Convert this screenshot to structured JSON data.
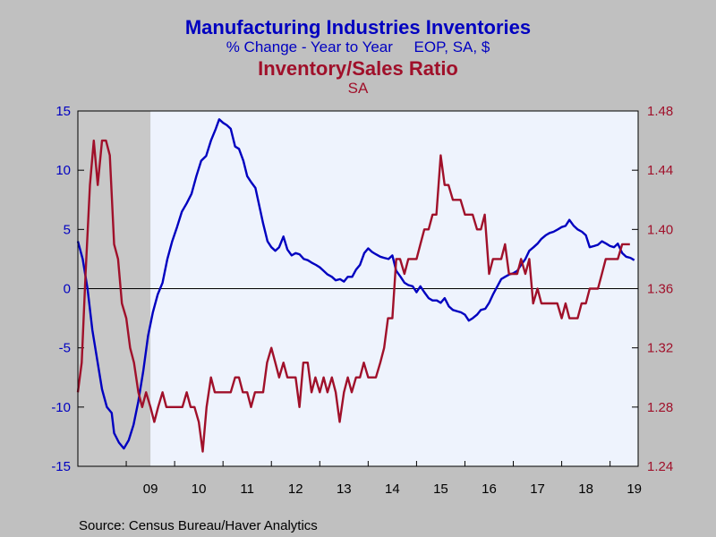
{
  "chart_data": {
    "type": "line",
    "title": "Manufacturing Industries Inventories",
    "subtitle": "% Change - Year to Year     EOP, SA, $",
    "title2": "Inventory/Sales Ratio",
    "subtitle2": "SA",
    "source": "Source:  Census Bureau/Haver Analytics",
    "x_tick_labels": [
      "09",
      "10",
      "11",
      "12",
      "13",
      "14",
      "15",
      "16",
      "17",
      "18",
      "19"
    ],
    "x_tick_years": [
      2009,
      2010,
      2011,
      2012,
      2013,
      2014,
      2015,
      2016,
      2017,
      2018,
      2019
    ],
    "xlim": [
      2008.0,
      2019.58
    ],
    "recession_shade": [
      2008.0,
      2009.5
    ],
    "y_left": {
      "ylim": [
        -15,
        15
      ],
      "ticks": [
        -15,
        -10,
        -5,
        0,
        5,
        10,
        15
      ],
      "tick_labels": [
        "-15",
        "-10",
        "-5",
        "0",
        "5",
        "10",
        "15"
      ]
    },
    "y_right": {
      "ylim": [
        1.24,
        1.48
      ],
      "ticks": [
        1.24,
        1.28,
        1.32,
        1.36,
        1.4,
        1.44,
        1.48
      ],
      "tick_labels": [
        "1.24",
        "1.28",
        "1.32",
        "1.36",
        "1.40",
        "1.44",
        "1.48"
      ]
    },
    "colors": {
      "inventories": "#0000c0",
      "ratio": "#a0102a",
      "plot_bg": "#eef3fd",
      "page_bg": "#c0c0c0",
      "shade": "#c8c8c8"
    },
    "series": [
      {
        "axis": "left",
        "points": [
          [
            2008.0,
            4.0
          ],
          [
            2008.1,
            2.5
          ],
          [
            2008.2,
            0.0
          ],
          [
            2008.3,
            -3.5
          ],
          [
            2008.4,
            -6.0
          ],
          [
            2008.5,
            -8.5
          ],
          [
            2008.6,
            -10.0
          ],
          [
            2008.7,
            -10.5
          ],
          [
            2008.75,
            -12.2
          ],
          [
            2008.85,
            -13.0
          ],
          [
            2008.95,
            -13.5
          ],
          [
            2009.05,
            -12.8
          ],
          [
            2009.15,
            -11.5
          ],
          [
            2009.25,
            -9.5
          ],
          [
            2009.35,
            -7.0
          ],
          [
            2009.45,
            -4.0
          ],
          [
            2009.55,
            -2.0
          ],
          [
            2009.65,
            -0.5
          ],
          [
            2009.75,
            0.5
          ],
          [
            2009.85,
            2.5
          ],
          [
            2009.95,
            4.0
          ],
          [
            2010.05,
            5.2
          ],
          [
            2010.15,
            6.5
          ],
          [
            2010.25,
            7.2
          ],
          [
            2010.35,
            8.0
          ],
          [
            2010.45,
            9.5
          ],
          [
            2010.55,
            10.8
          ],
          [
            2010.65,
            11.2
          ],
          [
            2010.75,
            12.5
          ],
          [
            2010.85,
            13.5
          ],
          [
            2010.92,
            14.3
          ],
          [
            2011.0,
            14.0
          ],
          [
            2011.08,
            13.8
          ],
          [
            2011.16,
            13.5
          ],
          [
            2011.25,
            12.0
          ],
          [
            2011.33,
            11.8
          ],
          [
            2011.42,
            10.8
          ],
          [
            2011.5,
            9.5
          ],
          [
            2011.58,
            9.0
          ],
          [
            2011.67,
            8.5
          ],
          [
            2011.75,
            7.0
          ],
          [
            2011.83,
            5.5
          ],
          [
            2011.92,
            4.0
          ],
          [
            2012.0,
            3.5
          ],
          [
            2012.08,
            3.2
          ],
          [
            2012.16,
            3.5
          ],
          [
            2012.25,
            4.4
          ],
          [
            2012.33,
            3.3
          ],
          [
            2012.42,
            2.8
          ],
          [
            2012.5,
            3.0
          ],
          [
            2012.58,
            2.9
          ],
          [
            2012.67,
            2.5
          ],
          [
            2012.75,
            2.4
          ],
          [
            2012.83,
            2.2
          ],
          [
            2012.92,
            2.0
          ],
          [
            2013.0,
            1.8
          ],
          [
            2013.08,
            1.5
          ],
          [
            2013.16,
            1.2
          ],
          [
            2013.25,
            1.0
          ],
          [
            2013.33,
            0.7
          ],
          [
            2013.42,
            0.8
          ],
          [
            2013.5,
            0.6
          ],
          [
            2013.58,
            1.0
          ],
          [
            2013.67,
            1.0
          ],
          [
            2013.75,
            1.6
          ],
          [
            2013.83,
            2.0
          ],
          [
            2013.92,
            3.0
          ],
          [
            2014.0,
            3.4
          ],
          [
            2014.08,
            3.1
          ],
          [
            2014.16,
            2.9
          ],
          [
            2014.25,
            2.7
          ],
          [
            2014.33,
            2.6
          ],
          [
            2014.42,
            2.5
          ],
          [
            2014.5,
            2.8
          ],
          [
            2014.58,
            1.5
          ],
          [
            2014.67,
            1.0
          ],
          [
            2014.75,
            0.5
          ],
          [
            2014.83,
            0.3
          ],
          [
            2014.92,
            0.2
          ],
          [
            2015.0,
            -0.3
          ],
          [
            2015.08,
            0.2
          ],
          [
            2015.16,
            -0.3
          ],
          [
            2015.25,
            -0.8
          ],
          [
            2015.33,
            -1.0
          ],
          [
            2015.42,
            -1.0
          ],
          [
            2015.5,
            -1.2
          ],
          [
            2015.58,
            -0.8
          ],
          [
            2015.67,
            -1.5
          ],
          [
            2015.75,
            -1.8
          ],
          [
            2015.83,
            -1.9
          ],
          [
            2015.92,
            -2.0
          ],
          [
            2016.0,
            -2.2
          ],
          [
            2016.08,
            -2.7
          ],
          [
            2016.16,
            -2.5
          ],
          [
            2016.25,
            -2.2
          ],
          [
            2016.33,
            -1.8
          ],
          [
            2016.42,
            -1.7
          ],
          [
            2016.5,
            -1.2
          ],
          [
            2016.58,
            -0.5
          ],
          [
            2016.67,
            0.2
          ],
          [
            2016.75,
            0.8
          ],
          [
            2016.83,
            1.0
          ],
          [
            2016.92,
            1.2
          ],
          [
            2017.0,
            1.3
          ],
          [
            2017.08,
            1.5
          ],
          [
            2017.16,
            2.0
          ],
          [
            2017.25,
            2.5
          ],
          [
            2017.33,
            3.2
          ],
          [
            2017.42,
            3.5
          ],
          [
            2017.5,
            3.8
          ],
          [
            2017.58,
            4.2
          ],
          [
            2017.67,
            4.5
          ],
          [
            2017.75,
            4.7
          ],
          [
            2017.83,
            4.8
          ],
          [
            2017.92,
            5.0
          ],
          [
            2018.0,
            5.2
          ],
          [
            2018.08,
            5.3
          ],
          [
            2018.16,
            5.8
          ],
          [
            2018.25,
            5.3
          ],
          [
            2018.33,
            5.0
          ],
          [
            2018.42,
            4.8
          ],
          [
            2018.5,
            4.5
          ],
          [
            2018.58,
            3.5
          ],
          [
            2018.67,
            3.6
          ],
          [
            2018.75,
            3.7
          ],
          [
            2018.83,
            4.0
          ],
          [
            2018.92,
            3.8
          ],
          [
            2019.0,
            3.6
          ],
          [
            2019.08,
            3.5
          ],
          [
            2019.16,
            3.8
          ],
          [
            2019.25,
            3.0
          ],
          [
            2019.33,
            2.7
          ],
          [
            2019.42,
            2.6
          ],
          [
            2019.5,
            2.4
          ]
        ]
      },
      {
        "axis": "right",
        "points": [
          [
            2008.0,
            1.29
          ],
          [
            2008.08,
            1.31
          ],
          [
            2008.16,
            1.37
          ],
          [
            2008.25,
            1.43
          ],
          [
            2008.33,
            1.46
          ],
          [
            2008.41,
            1.43
          ],
          [
            2008.5,
            1.46
          ],
          [
            2008.58,
            1.46
          ],
          [
            2008.66,
            1.45
          ],
          [
            2008.75,
            1.39
          ],
          [
            2008.83,
            1.38
          ],
          [
            2008.91,
            1.35
          ],
          [
            2009.0,
            1.34
          ],
          [
            2009.08,
            1.32
          ],
          [
            2009.16,
            1.31
          ],
          [
            2009.25,
            1.29
          ],
          [
            2009.33,
            1.28
          ],
          [
            2009.41,
            1.29
          ],
          [
            2009.5,
            1.28
          ],
          [
            2009.58,
            1.27
          ],
          [
            2009.66,
            1.28
          ],
          [
            2009.75,
            1.29
          ],
          [
            2009.83,
            1.28
          ],
          [
            2009.91,
            1.28
          ],
          [
            2010.0,
            1.28
          ],
          [
            2010.08,
            1.28
          ],
          [
            2010.16,
            1.28
          ],
          [
            2010.25,
            1.29
          ],
          [
            2010.33,
            1.28
          ],
          [
            2010.41,
            1.28
          ],
          [
            2010.5,
            1.27
          ],
          [
            2010.58,
            1.25
          ],
          [
            2010.66,
            1.28
          ],
          [
            2010.75,
            1.3
          ],
          [
            2010.83,
            1.29
          ],
          [
            2010.91,
            1.29
          ],
          [
            2011.0,
            1.29
          ],
          [
            2011.08,
            1.29
          ],
          [
            2011.16,
            1.29
          ],
          [
            2011.25,
            1.3
          ],
          [
            2011.33,
            1.3
          ],
          [
            2011.41,
            1.29
          ],
          [
            2011.5,
            1.29
          ],
          [
            2011.58,
            1.28
          ],
          [
            2011.66,
            1.29
          ],
          [
            2011.75,
            1.29
          ],
          [
            2011.83,
            1.29
          ],
          [
            2011.91,
            1.31
          ],
          [
            2012.0,
            1.32
          ],
          [
            2012.08,
            1.31
          ],
          [
            2012.16,
            1.3
          ],
          [
            2012.25,
            1.31
          ],
          [
            2012.33,
            1.3
          ],
          [
            2012.41,
            1.3
          ],
          [
            2012.5,
            1.3
          ],
          [
            2012.58,
            1.28
          ],
          [
            2012.66,
            1.31
          ],
          [
            2012.75,
            1.31
          ],
          [
            2012.83,
            1.29
          ],
          [
            2012.91,
            1.3
          ],
          [
            2013.0,
            1.29
          ],
          [
            2013.08,
            1.3
          ],
          [
            2013.16,
            1.29
          ],
          [
            2013.25,
            1.3
          ],
          [
            2013.33,
            1.29
          ],
          [
            2013.41,
            1.27
          ],
          [
            2013.5,
            1.29
          ],
          [
            2013.58,
            1.3
          ],
          [
            2013.66,
            1.29
          ],
          [
            2013.75,
            1.3
          ],
          [
            2013.83,
            1.3
          ],
          [
            2013.91,
            1.31
          ],
          [
            2014.0,
            1.3
          ],
          [
            2014.08,
            1.3
          ],
          [
            2014.16,
            1.3
          ],
          [
            2014.25,
            1.31
          ],
          [
            2014.33,
            1.32
          ],
          [
            2014.41,
            1.34
          ],
          [
            2014.5,
            1.34
          ],
          [
            2014.58,
            1.38
          ],
          [
            2014.66,
            1.38
          ],
          [
            2014.75,
            1.37
          ],
          [
            2014.83,
            1.38
          ],
          [
            2014.91,
            1.38
          ],
          [
            2015.0,
            1.38
          ],
          [
            2015.08,
            1.39
          ],
          [
            2015.16,
            1.4
          ],
          [
            2015.25,
            1.4
          ],
          [
            2015.33,
            1.41
          ],
          [
            2015.41,
            1.41
          ],
          [
            2015.5,
            1.45
          ],
          [
            2015.58,
            1.43
          ],
          [
            2015.66,
            1.43
          ],
          [
            2015.75,
            1.42
          ],
          [
            2015.83,
            1.42
          ],
          [
            2015.91,
            1.42
          ],
          [
            2016.0,
            1.41
          ],
          [
            2016.08,
            1.41
          ],
          [
            2016.16,
            1.41
          ],
          [
            2016.25,
            1.4
          ],
          [
            2016.33,
            1.4
          ],
          [
            2016.41,
            1.41
          ],
          [
            2016.5,
            1.37
          ],
          [
            2016.58,
            1.38
          ],
          [
            2016.66,
            1.38
          ],
          [
            2016.75,
            1.38
          ],
          [
            2016.83,
            1.39
          ],
          [
            2016.91,
            1.37
          ],
          [
            2017.0,
            1.37
          ],
          [
            2017.08,
            1.37
          ],
          [
            2017.16,
            1.38
          ],
          [
            2017.25,
            1.37
          ],
          [
            2017.33,
            1.38
          ],
          [
            2017.41,
            1.35
          ],
          [
            2017.5,
            1.36
          ],
          [
            2017.58,
            1.35
          ],
          [
            2017.66,
            1.35
          ],
          [
            2017.75,
            1.35
          ],
          [
            2017.83,
            1.35
          ],
          [
            2017.91,
            1.35
          ],
          [
            2018.0,
            1.34
          ],
          [
            2018.08,
            1.35
          ],
          [
            2018.16,
            1.34
          ],
          [
            2018.25,
            1.34
          ],
          [
            2018.33,
            1.34
          ],
          [
            2018.41,
            1.35
          ],
          [
            2018.5,
            1.35
          ],
          [
            2018.58,
            1.36
          ],
          [
            2018.66,
            1.36
          ],
          [
            2018.75,
            1.36
          ],
          [
            2018.83,
            1.37
          ],
          [
            2018.91,
            1.38
          ],
          [
            2019.0,
            1.38
          ],
          [
            2019.08,
            1.38
          ],
          [
            2019.16,
            1.38
          ],
          [
            2019.25,
            1.39
          ],
          [
            2019.33,
            1.39
          ],
          [
            2019.41,
            1.39
          ]
        ]
      }
    ]
  }
}
